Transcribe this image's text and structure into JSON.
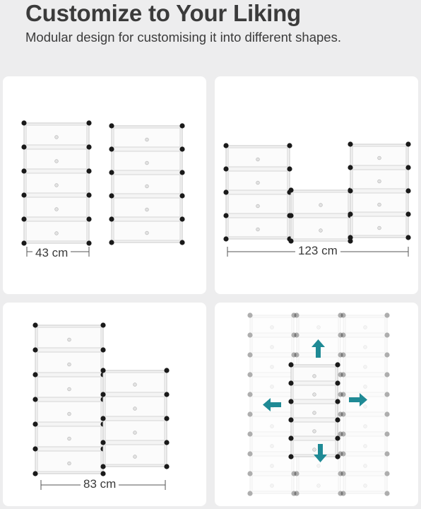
{
  "header": {
    "title": "Customize to Your Liking",
    "subtitle": "Modular design for customising it into different shapes."
  },
  "panels": {
    "top_left": {
      "dimension": "43 cm"
    },
    "top_right": {
      "dimension": "123 cm"
    },
    "bottom_left": {
      "dimension": "83 cm"
    },
    "bottom_right": {
      "arrows": [
        "up-arrow-icon",
        "left-arrow-icon",
        "right-arrow-icon",
        "down-arrow-icon"
      ]
    }
  },
  "colors": {
    "background": "#ededee",
    "panel": "#ffffff",
    "connector": "#1a1a1a",
    "arrow": "#1f8a95"
  }
}
